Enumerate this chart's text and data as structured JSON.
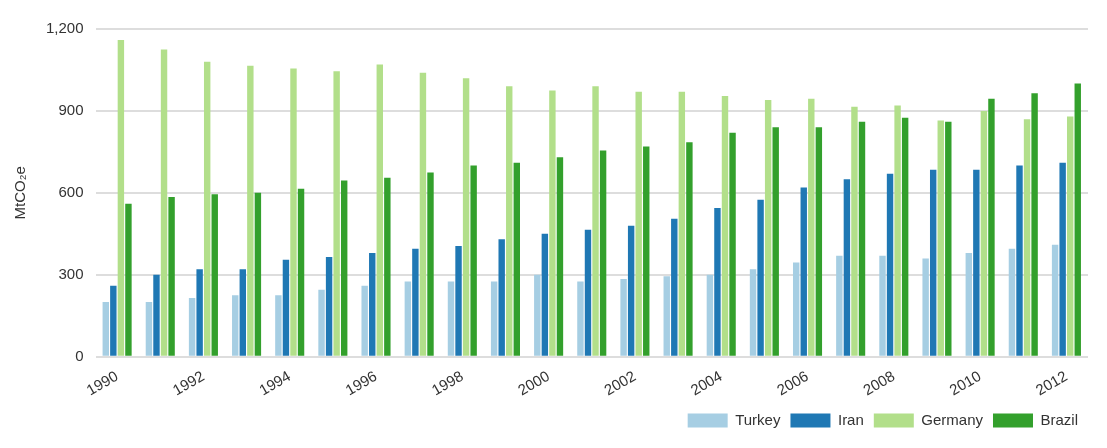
{
  "chart_data": {
    "type": "bar",
    "ylabel": "MtCO₂e",
    "categories": [
      "1990",
      null,
      "1992",
      null,
      "1994",
      null,
      "1996",
      null,
      "1998",
      null,
      "2000",
      null,
      "2002",
      null,
      "2004",
      null,
      "2006",
      null,
      "2008",
      null,
      "2010",
      null,
      "2012"
    ],
    "series": [
      {
        "name": "Turkey",
        "color": "#a6cee3",
        "values": [
          200,
          200,
          215,
          225,
          225,
          245,
          260,
          275,
          275,
          275,
          300,
          275,
          285,
          295,
          300,
          320,
          345,
          370,
          370,
          360,
          380,
          395,
          410
        ]
      },
      {
        "name": "Iran",
        "color": "#1f78b4",
        "values": [
          260,
          300,
          320,
          320,
          355,
          365,
          380,
          395,
          405,
          430,
          450,
          465,
          480,
          505,
          545,
          575,
          620,
          650,
          670,
          685,
          685,
          700,
          710
        ]
      },
      {
        "name": "Germany",
        "color": "#b2df8a",
        "values": [
          1160,
          1125,
          1080,
          1065,
          1055,
          1045,
          1070,
          1040,
          1020,
          990,
          975,
          990,
          970,
          970,
          955,
          940,
          945,
          915,
          920,
          865,
          900,
          870,
          880
        ]
      },
      {
        "name": "Brazil",
        "color": "#33a02c",
        "values": [
          560,
          585,
          595,
          600,
          615,
          645,
          655,
          675,
          700,
          710,
          730,
          755,
          770,
          785,
          820,
          840,
          840,
          860,
          875,
          860,
          945,
          965,
          1000
        ]
      }
    ],
    "ylim": [
      0,
      1200
    ],
    "yticks": [
      0,
      300,
      600,
      900,
      {
        "value": 1200,
        "label": "1,200"
      }
    ],
    "grid": "y",
    "legend": "bottom right"
  }
}
